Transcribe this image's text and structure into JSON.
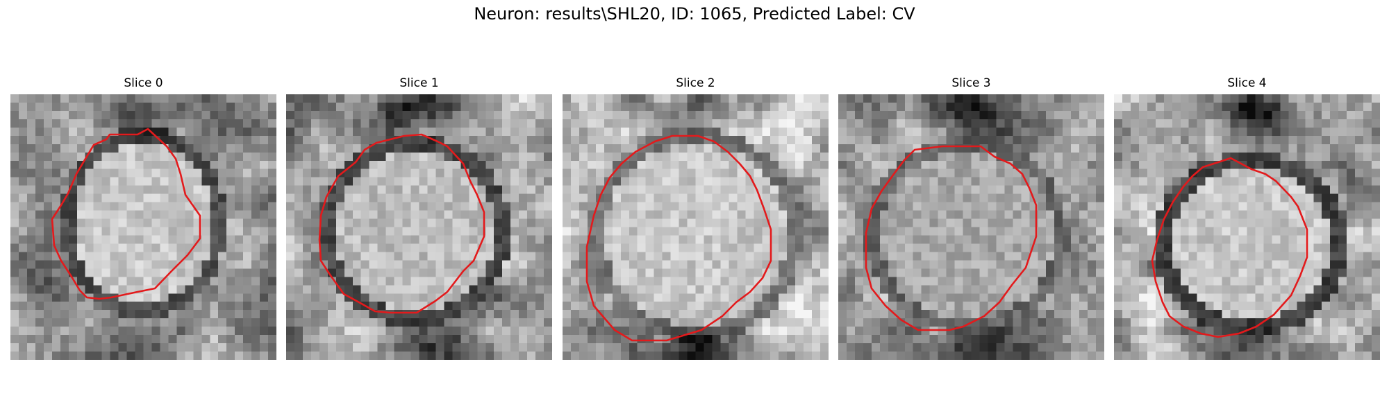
{
  "figure": {
    "title": "Neuron: results\\SHL20, ID: 1065, Predicted Label: CV"
  },
  "colors": {
    "contour": "#e31a1c",
    "background": "#ffffff"
  },
  "slices": [
    {
      "label": "Slice 0"
    },
    {
      "label": "Slice 1"
    },
    {
      "label": "Slice 2"
    },
    {
      "label": "Slice 3"
    },
    {
      "label": "Slice 4"
    }
  ]
}
